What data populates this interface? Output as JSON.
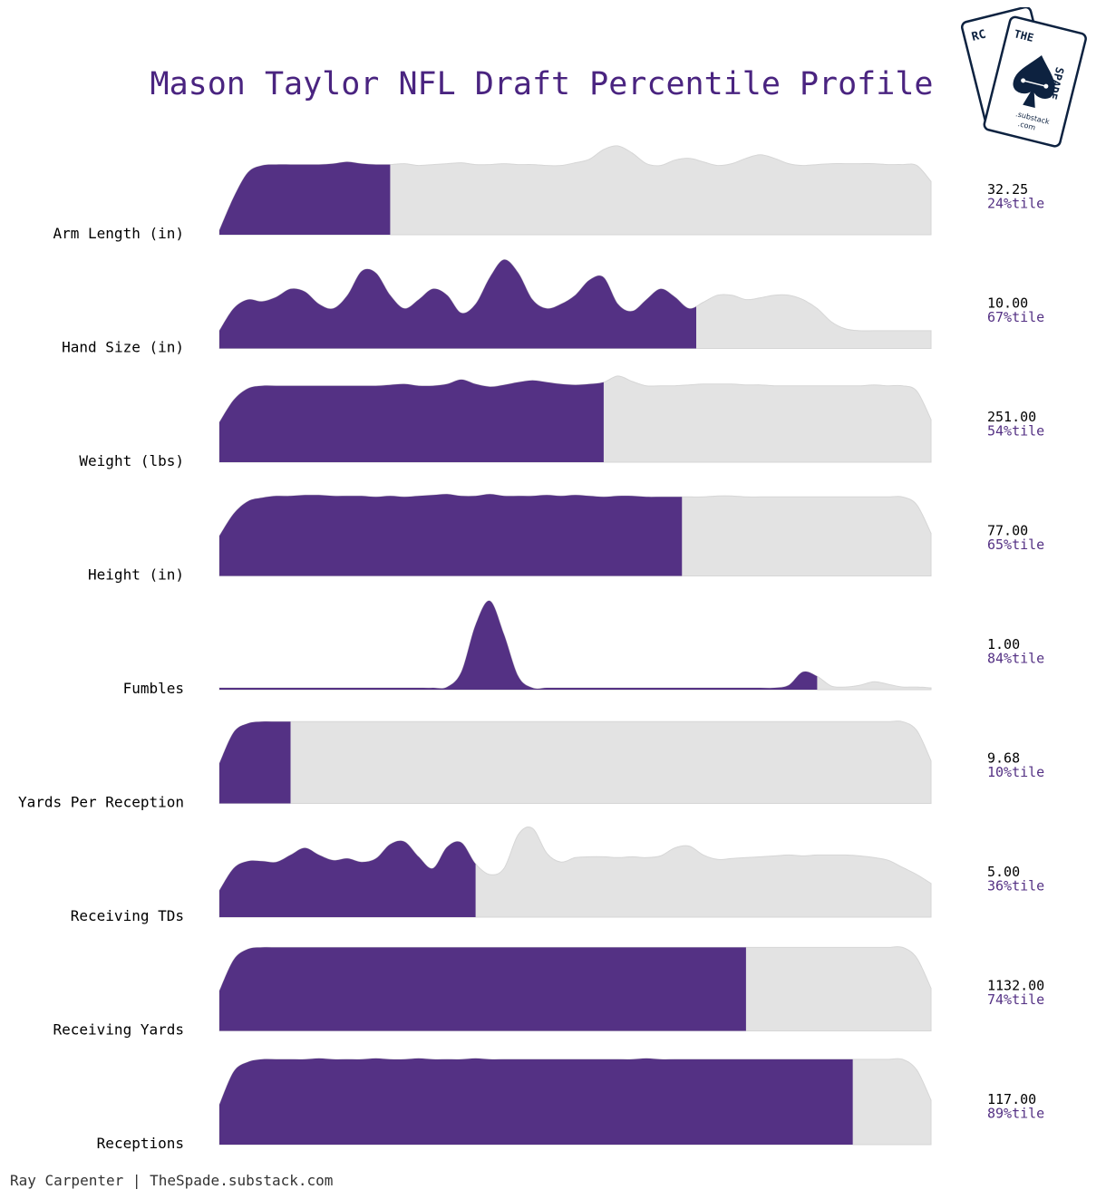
{
  "title": "Mason Taylor NFL Draft Percentile Profile",
  "footer": "Ray Carpenter | TheSpade.substack.com",
  "logo": {
    "back_card_text": "RC",
    "front_card_text_left": "THE",
    "front_card_text_right": "SPADE",
    "sub_text_1": ".substack",
    "sub_text_2": ".com"
  },
  "colors": {
    "fill": "#543184",
    "rest": "#e3e3e3",
    "title": "#4a2480",
    "percentile_text": "#543184",
    "value_text": "#000000",
    "logo": "#0d2240"
  },
  "chart_data": {
    "type": "area",
    "title": "Mason Taylor NFL Draft Percentile Profile",
    "series": [
      {
        "name": "Arm Length (in)",
        "value": "32.25",
        "percentile": 24,
        "percentile_label": "24%tile",
        "density": [
          0.05,
          0.42,
          0.7,
          0.78,
          0.79,
          0.79,
          0.79,
          0.79,
          0.8,
          0.82,
          0.8,
          0.79,
          0.79,
          0.8,
          0.78,
          0.79,
          0.8,
          0.81,
          0.79,
          0.79,
          0.8,
          0.79,
          0.79,
          0.78,
          0.78,
          0.81,
          0.85,
          0.96,
          1.0,
          0.92,
          0.8,
          0.78,
          0.84,
          0.86,
          0.82,
          0.78,
          0.8,
          0.86,
          0.9,
          0.86,
          0.8,
          0.78,
          0.79,
          0.8,
          0.8,
          0.8,
          0.8,
          0.79,
          0.79,
          0.78,
          0.6
        ]
      },
      {
        "name": "Hand Size (in)",
        "value": "10.00",
        "percentile": 67,
        "percentile_label": "67%tile",
        "density": [
          0.2,
          0.45,
          0.55,
          0.53,
          0.58,
          0.67,
          0.64,
          0.5,
          0.45,
          0.6,
          0.87,
          0.85,
          0.6,
          0.45,
          0.55,
          0.67,
          0.6,
          0.4,
          0.5,
          0.8,
          1.0,
          0.85,
          0.55,
          0.45,
          0.5,
          0.6,
          0.77,
          0.8,
          0.5,
          0.42,
          0.55,
          0.67,
          0.58,
          0.45,
          0.52,
          0.6,
          0.6,
          0.55,
          0.57,
          0.6,
          0.6,
          0.55,
          0.45,
          0.3,
          0.22,
          0.2,
          0.2,
          0.2,
          0.2,
          0.2,
          0.2
        ]
      },
      {
        "name": "Weight (lbs)",
        "value": "251.00",
        "percentile": 54,
        "percentile_label": "54%tile",
        "density": [
          0.45,
          0.7,
          0.83,
          0.86,
          0.86,
          0.86,
          0.86,
          0.86,
          0.86,
          0.86,
          0.86,
          0.86,
          0.87,
          0.88,
          0.86,
          0.86,
          0.88,
          0.93,
          0.88,
          0.85,
          0.87,
          0.9,
          0.92,
          0.9,
          0.88,
          0.87,
          0.88,
          0.9,
          0.97,
          0.91,
          0.86,
          0.86,
          0.86,
          0.87,
          0.88,
          0.88,
          0.88,
          0.87,
          0.87,
          0.86,
          0.86,
          0.86,
          0.86,
          0.86,
          0.86,
          0.86,
          0.87,
          0.86,
          0.86,
          0.8,
          0.48
        ]
      },
      {
        "name": "Height (in)",
        "value": "77.00",
        "percentile": 65,
        "percentile_label": "65%tile",
        "density": [
          0.45,
          0.7,
          0.84,
          0.88,
          0.9,
          0.9,
          0.91,
          0.91,
          0.9,
          0.9,
          0.9,
          0.89,
          0.9,
          0.89,
          0.9,
          0.91,
          0.92,
          0.9,
          0.9,
          0.92,
          0.9,
          0.9,
          0.9,
          0.91,
          0.9,
          0.91,
          0.9,
          0.89,
          0.9,
          0.9,
          0.89,
          0.89,
          0.89,
          0.89,
          0.89,
          0.9,
          0.9,
          0.89,
          0.89,
          0.89,
          0.89,
          0.89,
          0.89,
          0.89,
          0.89,
          0.89,
          0.89,
          0.89,
          0.89,
          0.8,
          0.48
        ]
      },
      {
        "name": "Fumbles",
        "value": "1.00",
        "percentile": 84,
        "percentile_label": "84%tile",
        "density": [
          0.02,
          0.02,
          0.02,
          0.02,
          0.02,
          0.02,
          0.02,
          0.02,
          0.02,
          0.02,
          0.02,
          0.02,
          0.02,
          0.02,
          0.02,
          0.02,
          0.03,
          0.2,
          0.73,
          1.0,
          0.62,
          0.15,
          0.02,
          0.02,
          0.02,
          0.02,
          0.02,
          0.02,
          0.02,
          0.02,
          0.02,
          0.02,
          0.02,
          0.02,
          0.02,
          0.02,
          0.02,
          0.02,
          0.02,
          0.02,
          0.05,
          0.2,
          0.15,
          0.04,
          0.03,
          0.05,
          0.09,
          0.06,
          0.03,
          0.03,
          0.02
        ]
      },
      {
        "name": "Yards Per Reception",
        "value": "9.68",
        "percentile": 10,
        "percentile_label": "10%tile",
        "density": [
          0.45,
          0.8,
          0.9,
          0.92,
          0.92,
          0.92,
          0.92,
          0.92,
          0.92,
          0.92,
          0.92,
          0.92,
          0.92,
          0.92,
          0.92,
          0.92,
          0.92,
          0.92,
          0.92,
          0.92,
          0.92,
          0.92,
          0.92,
          0.92,
          0.92,
          0.92,
          0.92,
          0.92,
          0.92,
          0.92,
          0.92,
          0.92,
          0.92,
          0.92,
          0.92,
          0.92,
          0.92,
          0.92,
          0.92,
          0.92,
          0.92,
          0.92,
          0.92,
          0.92,
          0.92,
          0.92,
          0.92,
          0.92,
          0.92,
          0.82,
          0.48
        ]
      },
      {
        "name": "Receiving TDs",
        "value": "5.00",
        "percentile": 36,
        "percentile_label": "36%tile",
        "density": [
          0.3,
          0.55,
          0.63,
          0.63,
          0.62,
          0.7,
          0.78,
          0.7,
          0.64,
          0.66,
          0.62,
          0.66,
          0.82,
          0.85,
          0.68,
          0.55,
          0.79,
          0.84,
          0.6,
          0.48,
          0.55,
          0.93,
          1.0,
          0.72,
          0.62,
          0.67,
          0.68,
          0.68,
          0.67,
          0.68,
          0.67,
          0.69,
          0.78,
          0.8,
          0.7,
          0.65,
          0.66,
          0.67,
          0.68,
          0.69,
          0.7,
          0.69,
          0.7,
          0.7,
          0.7,
          0.69,
          0.67,
          0.64,
          0.56,
          0.48,
          0.38
        ]
      },
      {
        "name": "Receiving Yards",
        "value": "1132.00",
        "percentile": 74,
        "percentile_label": "74%tile",
        "density": [
          0.45,
          0.8,
          0.92,
          0.94,
          0.94,
          0.94,
          0.94,
          0.94,
          0.94,
          0.94,
          0.94,
          0.94,
          0.94,
          0.94,
          0.94,
          0.94,
          0.94,
          0.94,
          0.94,
          0.94,
          0.94,
          0.94,
          0.94,
          0.94,
          0.94,
          0.94,
          0.94,
          0.94,
          0.94,
          0.94,
          0.94,
          0.94,
          0.94,
          0.94,
          0.94,
          0.94,
          0.94,
          0.94,
          0.94,
          0.94,
          0.94,
          0.94,
          0.94,
          0.94,
          0.94,
          0.94,
          0.94,
          0.94,
          0.94,
          0.82,
          0.48
        ]
      },
      {
        "name": "Receptions",
        "value": "117.00",
        "percentile": 89,
        "percentile_label": "89%tile",
        "density": [
          0.45,
          0.82,
          0.93,
          0.96,
          0.96,
          0.96,
          0.96,
          0.97,
          0.96,
          0.96,
          0.96,
          0.97,
          0.96,
          0.96,
          0.97,
          0.96,
          0.96,
          0.96,
          0.97,
          0.96,
          0.96,
          0.96,
          0.96,
          0.96,
          0.96,
          0.96,
          0.96,
          0.96,
          0.96,
          0.96,
          0.97,
          0.96,
          0.96,
          0.96,
          0.96,
          0.96,
          0.96,
          0.96,
          0.96,
          0.96,
          0.96,
          0.96,
          0.96,
          0.96,
          0.96,
          0.96,
          0.96,
          0.96,
          0.96,
          0.84,
          0.5
        ]
      }
    ]
  }
}
